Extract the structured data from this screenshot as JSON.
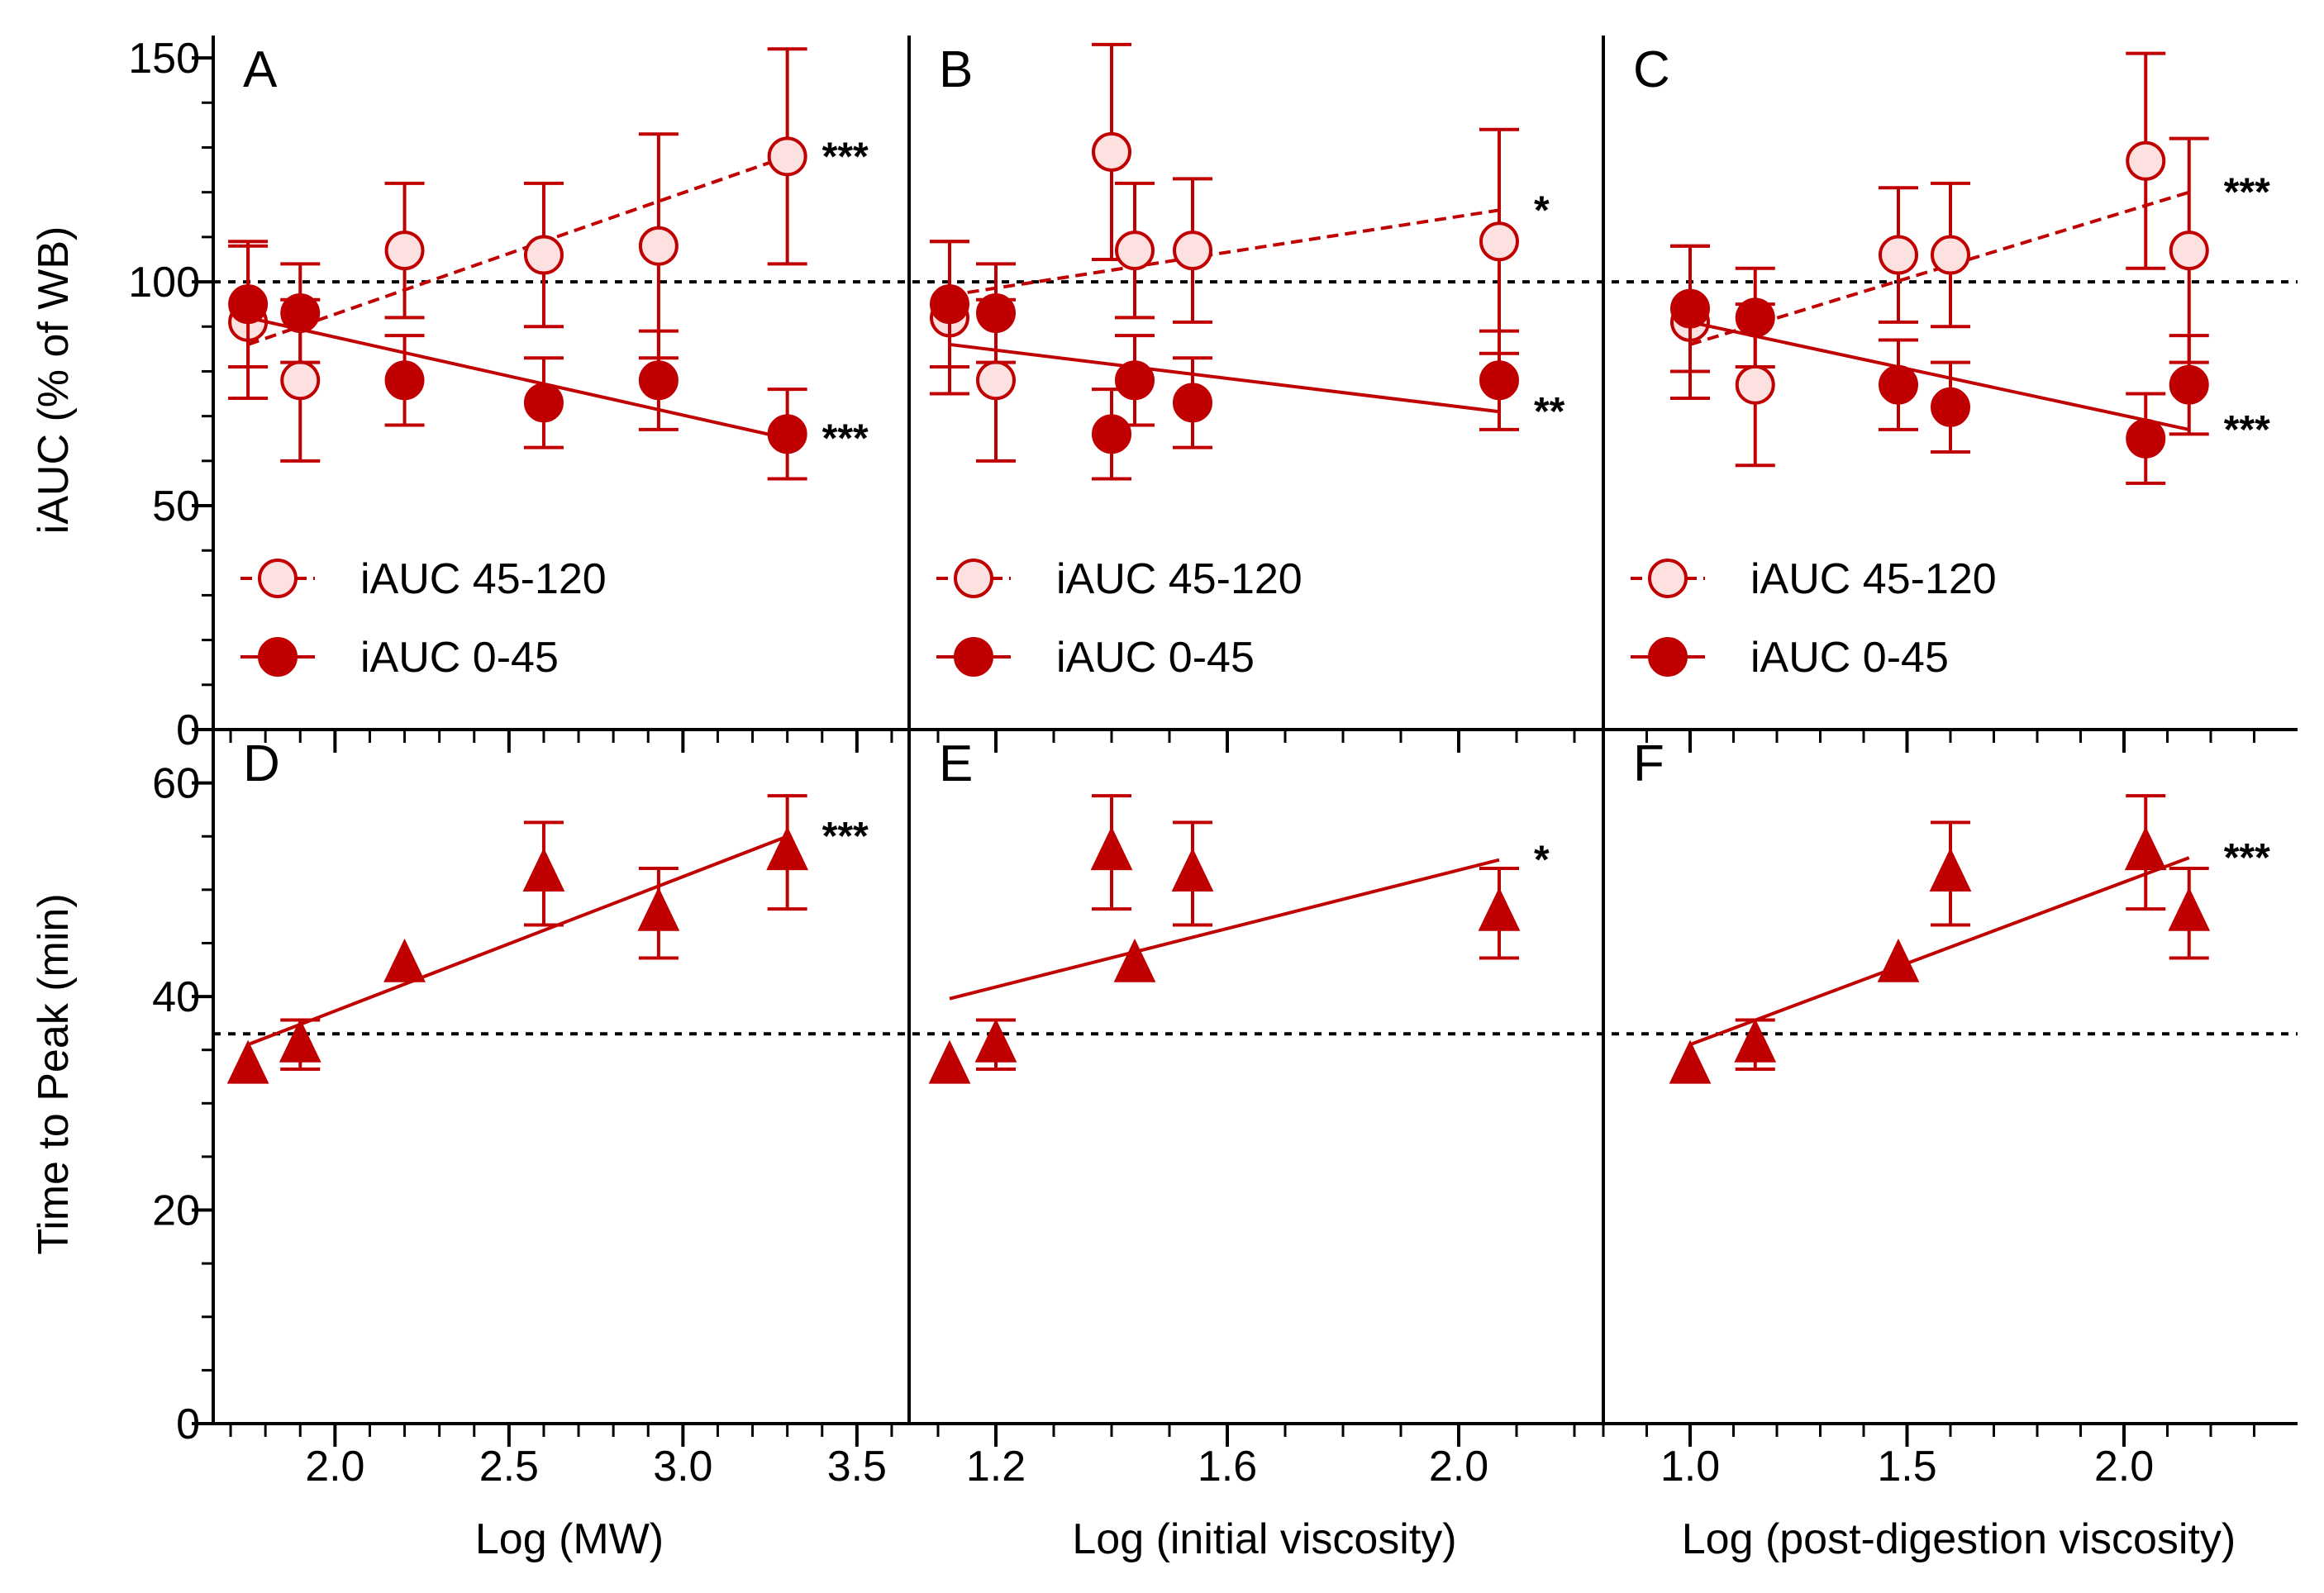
{
  "colors": {
    "series": "#c00000",
    "open_fill": "#fde1e1",
    "axis": "#000000",
    "reference": "#000000"
  },
  "y_axes": {
    "top": {
      "label": "iAUC (% of WB)",
      "ticks": [
        0,
        50,
        100,
        150
      ],
      "ylim": [
        0,
        155
      ],
      "reference_line": 100
    },
    "bottom": {
      "label": "Time to Peak (min)",
      "ticks": [
        0,
        20,
        40,
        60
      ],
      "ylim": [
        0,
        65
      ],
      "reference_line": 36.5
    }
  },
  "legend": {
    "open": "iAUC 45-120",
    "filled": "iAUC 0-45"
  },
  "chart_data": [
    {
      "type": "scatter",
      "panel": "A",
      "column": 0,
      "row": "top",
      "xlabel": "Log (MW)",
      "xlim": [
        1.65,
        3.65
      ],
      "xticks": [
        2.0,
        2.5,
        3.0,
        3.5
      ],
      "xticklabels": [
        "2.0",
        "2.5",
        "3.0",
        "3.5"
      ],
      "xminor": 0.1,
      "series": [
        {
          "name": "iAUC 45-120",
          "style": "open",
          "x": [
            1.75,
            1.9,
            2.2,
            2.6,
            2.93,
            3.3
          ],
          "y": [
            91,
            78,
            107,
            106,
            108,
            128
          ],
          "err": [
            17,
            18,
            15,
            16,
            25,
            24
          ],
          "fit": [
            [
              1.75,
              86
            ],
            [
              3.3,
              128
            ]
          ],
          "fit_dash": true,
          "sig": "***"
        },
        {
          "name": "iAUC 0-45",
          "style": "filled",
          "x": [
            1.75,
            1.9,
            2.2,
            2.6,
            2.93,
            3.3
          ],
          "y": [
            95,
            93,
            78,
            73,
            78,
            66
          ],
          "err": [
            14,
            11,
            10,
            10,
            11,
            10
          ],
          "fit": [
            [
              1.75,
              92
            ],
            [
              3.3,
              65
            ]
          ],
          "fit_dash": false,
          "sig": "***"
        }
      ]
    },
    {
      "type": "scatter",
      "panel": "B",
      "column": 1,
      "row": "top",
      "xlabel": "Log (initial viscosity)",
      "xlim": [
        1.05,
        2.25
      ],
      "xticks": [
        1.2,
        1.6,
        2.0
      ],
      "xticklabels": [
        "1.2",
        "1.6",
        "2.0"
      ],
      "xminor": 0.1,
      "series": [
        {
          "name": "iAUC 45-120",
          "style": "open",
          "x": [
            1.12,
            1.2,
            1.4,
            1.44,
            1.54,
            2.07
          ],
          "y": [
            92,
            78,
            129,
            107,
            107,
            109
          ],
          "err": [
            17,
            18,
            24,
            15,
            16,
            25
          ],
          "fit": [
            [
              1.12,
              97
            ],
            [
              2.07,
              116
            ]
          ],
          "fit_dash": true,
          "sig": "*"
        },
        {
          "name": "iAUC 0-45",
          "style": "filled",
          "x": [
            1.12,
            1.2,
            1.4,
            1.44,
            1.54,
            2.07
          ],
          "y": [
            95,
            93,
            66,
            78,
            73,
            78
          ],
          "err": [
            14,
            11,
            10,
            10,
            10,
            11
          ],
          "fit": [
            [
              1.12,
              86
            ],
            [
              2.07,
              71
            ]
          ],
          "fit_dash": false,
          "sig": "**"
        }
      ]
    },
    {
      "type": "scatter",
      "panel": "C",
      "column": 2,
      "row": "top",
      "xlabel": "Log (post-digestion viscosity)",
      "xlim": [
        0.8,
        2.4
      ],
      "xticks": [
        1.0,
        1.5,
        2.0
      ],
      "xticklabels": [
        "1.0",
        "1.5",
        "2.0"
      ],
      "xminor": 0.1,
      "series": [
        {
          "name": "iAUC 45-120",
          "style": "open",
          "x": [
            1.0,
            1.15,
            1.48,
            1.6,
            2.05,
            2.15
          ],
          "y": [
            91,
            77,
            106,
            106,
            127,
            107
          ],
          "err": [
            17,
            18,
            15,
            16,
            24,
            25
          ],
          "fit": [
            [
              1.0,
              86
            ],
            [
              2.15,
              120
            ]
          ],
          "fit_dash": true,
          "sig": "***"
        },
        {
          "name": "iAUC 0-45",
          "style": "filled",
          "x": [
            1.0,
            1.15,
            1.48,
            1.6,
            2.05,
            2.15
          ],
          "y": [
            94,
            92,
            77,
            72,
            65,
            77
          ],
          "err": [
            14,
            11,
            10,
            10,
            10,
            11
          ],
          "fit": [
            [
              1.0,
              91
            ],
            [
              2.15,
              67
            ]
          ],
          "fit_dash": false,
          "sig": "***"
        }
      ]
    },
    {
      "type": "scatter",
      "panel": "D",
      "column": 0,
      "row": "bottom",
      "xlabel": "Log (MW)",
      "xlim": [
        1.65,
        3.65
      ],
      "xticks": [
        2.0,
        2.5,
        3.0,
        3.5
      ],
      "xticklabels": [
        "2.0",
        "2.5",
        "3.0",
        "3.5"
      ],
      "xminor": 0.1,
      "series": [
        {
          "name": "Time to Peak",
          "style": "triangle",
          "x": [
            1.75,
            1.9,
            2.2,
            2.6,
            2.93,
            3.3
          ],
          "y": [
            33.5,
            35.5,
            43,
            51.5,
            47.8,
            53.5
          ],
          "err": [
            0,
            2.3,
            0,
            4.8,
            4.2,
            5.3
          ],
          "fit": [
            [
              1.75,
              35.5
            ],
            [
              3.3,
              55
            ]
          ],
          "fit_dash": false,
          "sig": "***"
        }
      ]
    },
    {
      "type": "scatter",
      "panel": "E",
      "column": 1,
      "row": "bottom",
      "xlabel": "Log (initial viscosity)",
      "xlim": [
        1.05,
        2.25
      ],
      "xticks": [
        1.2,
        1.6,
        2.0
      ],
      "xticklabels": [
        "1.2",
        "1.6",
        "2.0"
      ],
      "xminor": 0.1,
      "series": [
        {
          "name": "Time to Peak",
          "style": "triangle",
          "x": [
            1.12,
            1.2,
            1.4,
            1.44,
            1.54,
            2.07
          ],
          "y": [
            33.5,
            35.5,
            53.5,
            43,
            51.5,
            47.8
          ],
          "err": [
            0,
            2.3,
            5.3,
            0,
            4.8,
            4.2
          ],
          "fit": [
            [
              1.12,
              39.8
            ],
            [
              2.07,
              52.8
            ]
          ],
          "fit_dash": false,
          "sig": "*"
        }
      ]
    },
    {
      "type": "scatter",
      "panel": "F",
      "column": 2,
      "row": "bottom",
      "xlabel": "Log (post-digestion viscosity)",
      "xlim": [
        0.8,
        2.4
      ],
      "xticks": [
        1.0,
        1.5,
        2.0
      ],
      "xticklabels": [
        "1.0",
        "1.5",
        "2.0"
      ],
      "xminor": 0.1,
      "series": [
        {
          "name": "Time to Peak",
          "style": "triangle",
          "x": [
            1.0,
            1.15,
            1.48,
            1.6,
            2.05,
            2.15
          ],
          "y": [
            33.5,
            35.5,
            43,
            51.5,
            53.5,
            47.8
          ],
          "err": [
            0,
            2.3,
            0,
            4.8,
            5.3,
            4.2
          ],
          "fit": [
            [
              1.0,
              35.5
            ],
            [
              2.15,
              53
            ]
          ],
          "fit_dash": false,
          "sig": "***"
        }
      ]
    }
  ]
}
